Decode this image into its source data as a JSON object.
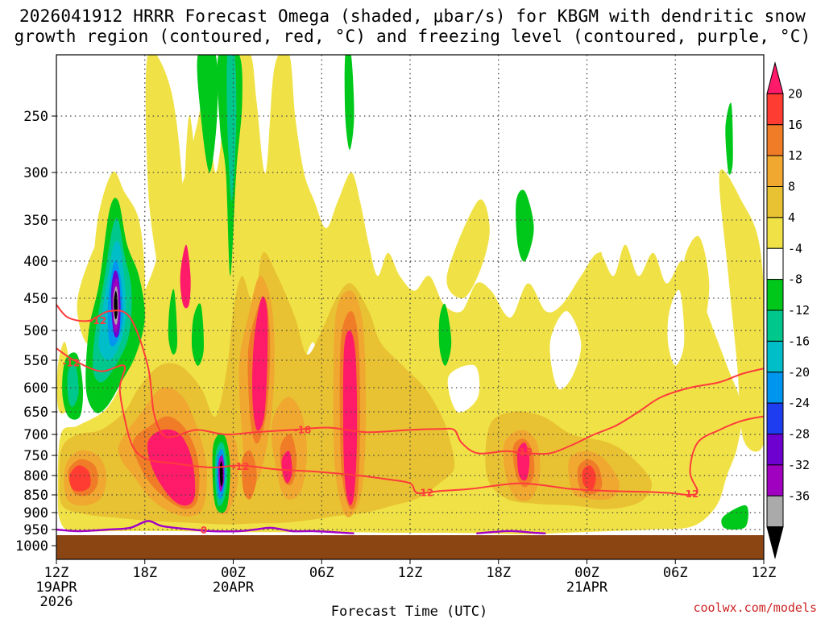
{
  "title": {
    "line1": "2026041912 HRRR Forecast Omega (shaded, μbar/s) for KBGM with dendritic snow",
    "line2": "growth region (contoured, red, °C) and freezing level (contoured, purple, °C)"
  },
  "credit": "coolwx.com/models",
  "chart_data": {
    "type": "heatmap",
    "xlabel": "Forecast Time (UTC)",
    "ylabel": "",
    "x_ticks": [
      {
        "hour": 0,
        "label": "12Z",
        "sub": [
          "19APR",
          "2026"
        ]
      },
      {
        "hour": 6,
        "label": "18Z",
        "sub": []
      },
      {
        "hour": 12,
        "label": "00Z",
        "sub": [
          "20APR"
        ]
      },
      {
        "hour": 18,
        "label": "06Z",
        "sub": []
      },
      {
        "hour": 24,
        "label": "12Z",
        "sub": []
      },
      {
        "hour": 30,
        "label": "18Z",
        "sub": []
      },
      {
        "hour": 36,
        "label": "00Z",
        "sub": [
          "21APR"
        ]
      },
      {
        "hour": 42,
        "label": "06Z",
        "sub": []
      },
      {
        "hour": 48,
        "label": "12Z",
        "sub": []
      }
    ],
    "xlim": [
      0,
      48
    ],
    "y_levels_hpa": [
      250,
      300,
      350,
      400,
      450,
      500,
      550,
      600,
      650,
      700,
      750,
      800,
      850,
      900,
      950,
      1000
    ],
    "ylim_hpa": [
      200,
      1000
    ],
    "colorbar": {
      "labels": [
        "20",
        "16",
        "12",
        "8",
        "4",
        "-4",
        "-8",
        "-12",
        "-16",
        "-20",
        "-24",
        "-28",
        "-32",
        "-36"
      ],
      "colors": [
        "#ff1a6a",
        "#ff3c32",
        "#f07c28",
        "#f0a830",
        "#e8c232",
        "#f0e246",
        "#ffffff",
        "#00c81a",
        "#00c88c",
        "#00bec8",
        "#0096f0",
        "#1e3cf0",
        "#6e00d0",
        "#a000c0",
        "#aaaaaa",
        "#000000"
      ]
    },
    "shading_regions": [
      {
        "name": "updraft-1",
        "hour": 4.0,
        "p": 470,
        "value": -36
      },
      {
        "name": "updraft-2",
        "hour": 11.2,
        "p": 800,
        "value": -36
      },
      {
        "name": "upper-green-1",
        "hour": 11.8,
        "p": 290,
        "value": -12
      },
      {
        "name": "descent-core-1",
        "hour": 8.5,
        "p": 760,
        "value": 20
      },
      {
        "name": "descent-core-2",
        "hour": 14.2,
        "p": 560,
        "value": 20
      },
      {
        "name": "descent-core-3",
        "hour": 20.0,
        "p": 700,
        "value": 20
      },
      {
        "name": "descent-core-4",
        "hour": 1.0,
        "p": 800,
        "value": 16
      },
      {
        "name": "descent-core-5",
        "hour": 31.8,
        "p": 760,
        "value": 16
      },
      {
        "name": "descent-core-6",
        "hour": 36.0,
        "p": 805,
        "value": 16
      }
    ],
    "contours": [
      {
        "name": "dgz-upper",
        "label": "-18",
        "color": "#ff3c3c"
      },
      {
        "name": "dgz-lower",
        "label": "-12",
        "color": "#ff3c3c"
      },
      {
        "name": "dgz-lower-2",
        "label": "-12",
        "color": "#ff3c3c"
      },
      {
        "name": "dgz-left-1",
        "label": "-12",
        "color": "#ff3c3c"
      },
      {
        "name": "dgz-left-2",
        "label": "-12",
        "color": "#ff3c3c"
      },
      {
        "name": "dgz-mid",
        "label": "-12",
        "color": "#ff3c3c"
      },
      {
        "name": "dgz-mid-2",
        "label": "-18",
        "color": "#ff3c3c"
      },
      {
        "name": "freezing-level",
        "label": "0",
        "color": "#a000c8"
      }
    ]
  },
  "colors": {
    "ground": "#8b4513",
    "grid": "#444444",
    "dgz": "#ff3c3c",
    "freezing": "#a000c8"
  }
}
